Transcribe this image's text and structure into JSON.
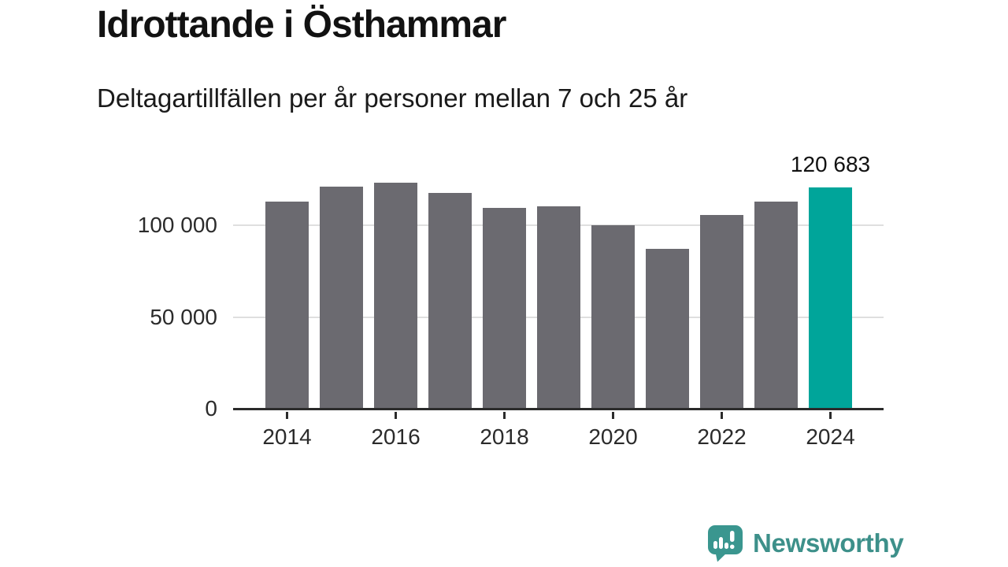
{
  "header": {
    "title": "Idrottande i Östhammar",
    "subtitle": "Deltagartillfällen per år personer mellan 7 och 25 år"
  },
  "chart_data": {
    "type": "bar",
    "title": "Idrottande i Östhammar",
    "subtitle": "Deltagartillfällen per år personer mellan 7 och 25 år",
    "categories": [
      2014,
      2015,
      2016,
      2017,
      2018,
      2019,
      2020,
      2021,
      2022,
      2023,
      2024
    ],
    "values": [
      112900,
      121000,
      123200,
      117600,
      109300,
      110400,
      100000,
      87100,
      105600,
      112900,
      120683
    ],
    "highlight_index": 10,
    "annotation": {
      "index": 10,
      "label": "120 683",
      "value": 120683
    },
    "bar_color": "#6b6a70",
    "highlight_color": "#00a59a",
    "yticks": [
      {
        "value": 0,
        "label": "0"
      },
      {
        "value": 50000,
        "label": "50 000"
      },
      {
        "value": 100000,
        "label": "100 000"
      }
    ],
    "xticks": [
      {
        "year": 2014,
        "label": "2014"
      },
      {
        "year": 2016,
        "label": "2016"
      },
      {
        "year": 2018,
        "label": "2018"
      },
      {
        "year": 2020,
        "label": "2020"
      },
      {
        "year": 2022,
        "label": "2022"
      },
      {
        "year": 2024,
        "label": "2024"
      }
    ],
    "ylim": [
      0,
      135000
    ],
    "grid": "horizontal",
    "legend": "none",
    "gridline_color": "#dfdfdf",
    "axis_color": "#2b2b2b"
  },
  "footer": {
    "brand": "Newsworthy",
    "brand_color": "#3d908a",
    "icon": "bar-chart-speech-bubble-icon",
    "icon_color": "#3a968f"
  }
}
